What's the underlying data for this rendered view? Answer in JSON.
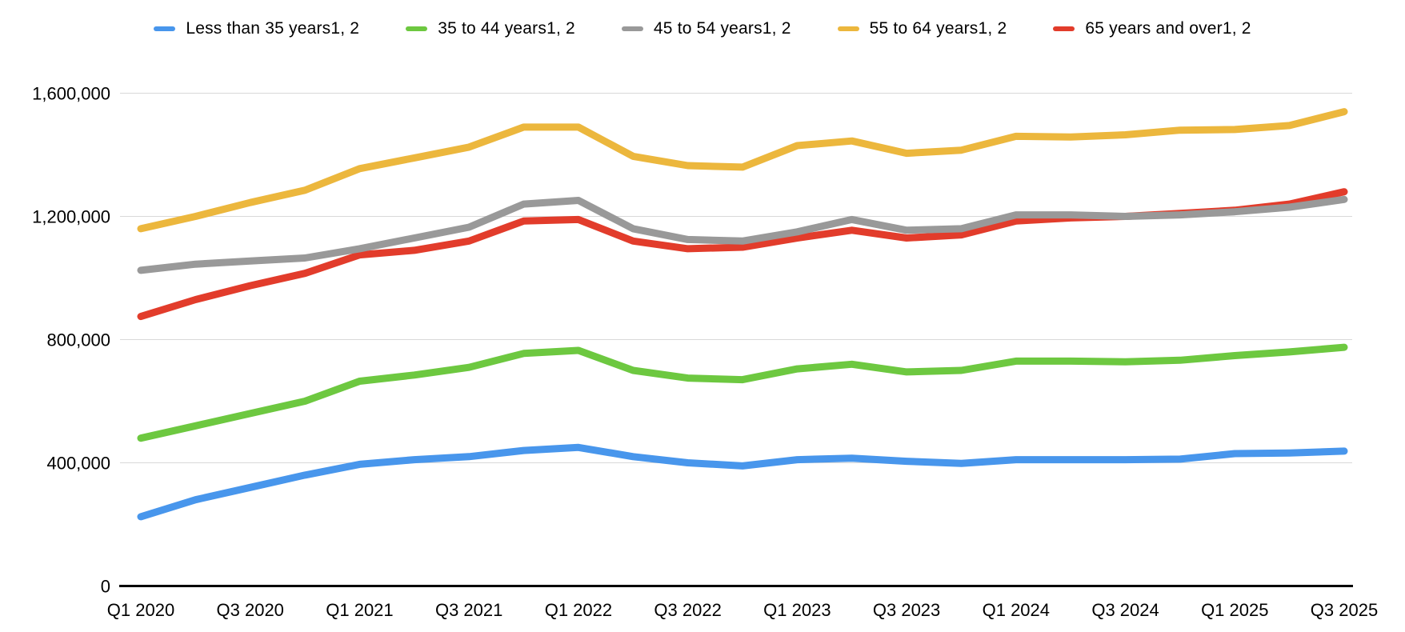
{
  "chart_data": {
    "type": "line",
    "title": "",
    "legend_position": "top",
    "grid": "horizontal",
    "x_categories": [
      "Q1 2020",
      "Q2 2020",
      "Q3 2020",
      "Q4 2020",
      "Q1 2021",
      "Q2 2021",
      "Q3 2021",
      "Q4 2021",
      "Q1 2022",
      "Q2 2022",
      "Q3 2022",
      "Q4 2022",
      "Q1 2023",
      "Q2 2023",
      "Q3 2023",
      "Q4 2023",
      "Q1 2024",
      "Q2 2024",
      "Q3 2024",
      "Q4 2024",
      "Q1 2025",
      "Q2 2025",
      "Q3 2025"
    ],
    "x_tick_labels": [
      "Q1 2020",
      "Q3 2020",
      "Q1 2021",
      "Q3 2021",
      "Q1 2022",
      "Q3 2022",
      "Q1 2023",
      "Q3 2023",
      "Q1 2024",
      "Q3 2024",
      "Q1 2025",
      "Q3 2025"
    ],
    "y_axis": {
      "min": 0,
      "max": 1600000,
      "tick_interval": 400000,
      "tick_labels": [
        "0",
        "400,000",
        "800,000",
        "1,200,000",
        "1,600,000"
      ]
    },
    "series": [
      {
        "name": "Less than 35 years1, 2",
        "color": "#4896EC",
        "values": [
          225000,
          280000,
          320000,
          360000,
          395000,
          410000,
          420000,
          440000,
          450000,
          420000,
          400000,
          390000,
          410000,
          415000,
          405000,
          398000,
          410000,
          410000,
          410000,
          412000,
          430000,
          432000,
          438000
        ]
      },
      {
        "name": "35 to 44 years1, 2",
        "color": "#6DC840",
        "values": [
          480000,
          520000,
          560000,
          600000,
          665000,
          685000,
          710000,
          755000,
          765000,
          700000,
          675000,
          670000,
          705000,
          720000,
          695000,
          700000,
          730000,
          730000,
          728000,
          733000,
          748000,
          760000,
          775000
        ]
      },
      {
        "name": "45 to 54 years1, 2",
        "color": "#999999",
        "values": [
          1025000,
          1045000,
          1055000,
          1065000,
          1095000,
          1130000,
          1165000,
          1240000,
          1252000,
          1160000,
          1125000,
          1120000,
          1150000,
          1190000,
          1155000,
          1160000,
          1205000,
          1205000,
          1200000,
          1205000,
          1215000,
          1230000,
          1255000
        ]
      },
      {
        "name": "55 to 64 years1, 2",
        "color": "#ECB73D",
        "values": [
          1160000,
          1200000,
          1245000,
          1285000,
          1355000,
          1390000,
          1425000,
          1490000,
          1490000,
          1395000,
          1365000,
          1360000,
          1430000,
          1445000,
          1405000,
          1415000,
          1460000,
          1458000,
          1465000,
          1480000,
          1482000,
          1495000,
          1540000
        ]
      },
      {
        "name": "65 years and over1, 2",
        "color": "#E23C2B",
        "values": [
          875000,
          930000,
          975000,
          1015000,
          1075000,
          1090000,
          1120000,
          1185000,
          1190000,
          1120000,
          1095000,
          1100000,
          1130000,
          1155000,
          1130000,
          1140000,
          1185000,
          1195000,
          1200000,
          1210000,
          1220000,
          1240000,
          1280000
        ]
      }
    ],
    "colors": {
      "grid": "#D9D9D9",
      "axis": "#000000",
      "text": "#000000",
      "background": "#FFFFFF"
    }
  }
}
